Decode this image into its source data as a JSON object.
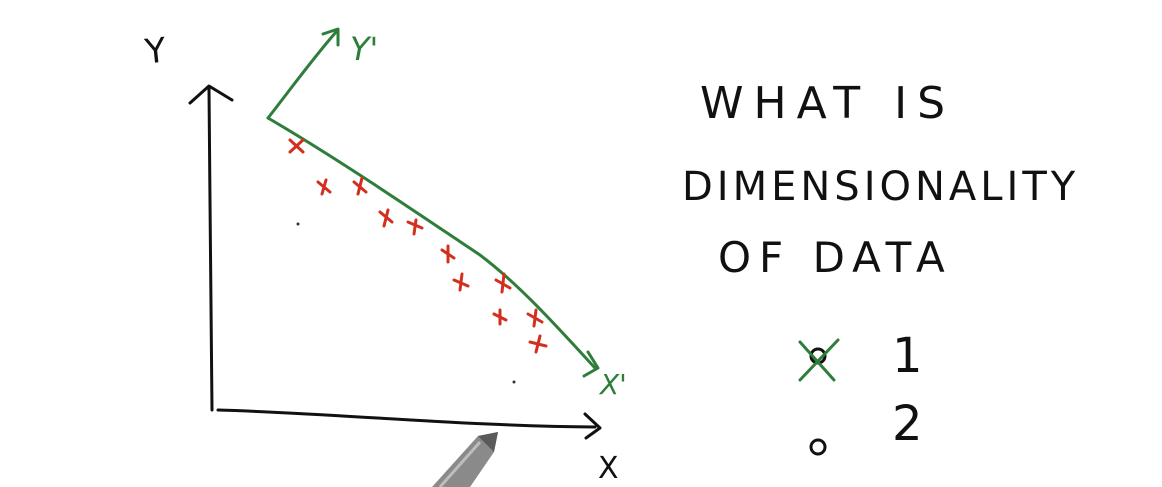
{
  "axes": {
    "x_label": "X",
    "y_label": "Y",
    "x_prime_label": "X'",
    "y_prime_label": "Y'"
  },
  "question": {
    "line1": "WHAT IS",
    "line2": "DIMENSIONALITY",
    "line3": "OF DATA"
  },
  "options": [
    {
      "label": "1",
      "state": "selected"
    },
    {
      "label": "2",
      "state": "unselected"
    }
  ],
  "colors": {
    "ink": "#111111",
    "green_ink": "#2e7d3a",
    "red_ink": "#d32f1f"
  },
  "icons": {
    "pen": "pen-tip-icon",
    "check": "check-mark-icon"
  }
}
